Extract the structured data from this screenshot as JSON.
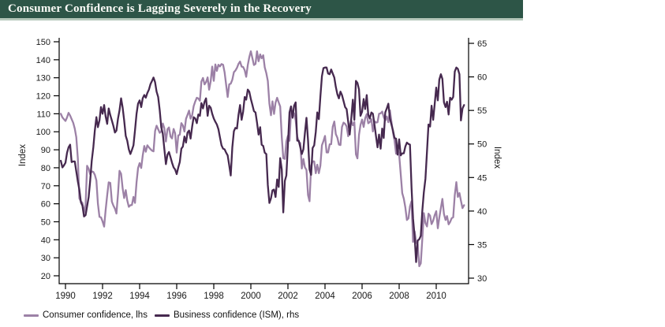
{
  "title": {
    "text": "Consumer Confidence is Lagging Severely in the Recovery"
  },
  "colors": {
    "title_bar_bg": "#2d5547",
    "title_bar_underline": "#b5c7ba",
    "title_text": "#fdfdf8",
    "axis": "#000000",
    "consumer_line": "#9c81a6",
    "ism_line": "#46294f"
  },
  "legend": {
    "items": [
      {
        "label": "Consumer confidence, lhs",
        "color": "#9c81a6"
      },
      {
        "label": "Business confidence (ISM), rhs",
        "color": "#46294f"
      }
    ]
  },
  "chart_data": {
    "type": "line",
    "title": "Consumer Confidence is Lagging Severely in the Recovery",
    "x_start": 1989.75,
    "x_step": "monthly",
    "x_end": 2011.5,
    "x_ticks": [
      1990,
      1992,
      1994,
      1996,
      1998,
      2000,
      2002,
      2004,
      2006,
      2008,
      2010
    ],
    "left_axis": {
      "label": "Index",
      "range": [
        20,
        150
      ],
      "ticks": [
        20,
        30,
        40,
        50,
        60,
        70,
        80,
        90,
        100,
        110,
        120,
        130,
        140,
        150
      ]
    },
    "right_axis": {
      "label": "Index",
      "range": [
        30,
        65
      ],
      "ticks": [
        30,
        35,
        40,
        45,
        50,
        55,
        60,
        65
      ]
    },
    "grid": false,
    "legend_position": "bottom-left",
    "series": [
      {
        "name": "Consumer confidence, lhs",
        "axis": "left",
        "color": "#9c81a6",
        "values": [
          110,
          108,
          107,
          106,
          108,
          110.5,
          109,
          107,
          105,
          101.7,
          97,
          85,
          63,
          61.3,
          60.5,
          55.1,
          59.4,
          81.1,
          79.4,
          76.4,
          78,
          77.7,
          76.1,
          72.9,
          60.1,
          52.7,
          52.5,
          50.2,
          47.3,
          56.5,
          64.8,
          71.9,
          71.6,
          61.2,
          59,
          57.3,
          54.6,
          65.6,
          78.3,
          76.7,
          68.5,
          63.2,
          67.6,
          61.9,
          58.3,
          59.2,
          59.3,
          63.8,
          60.5,
          71.9,
          79.8,
          82.6,
          79.9,
          86.7,
          92.1,
          88.9,
          92.5,
          91.3,
          90.4,
          89.5,
          89.1,
          100.4,
          103.4,
          101.4,
          99.4,
          100.2,
          104.6,
          102,
          94.6,
          101.4,
          102.4,
          97.3,
          96.3,
          101.6,
          99.2,
          88.4,
          98,
          98.4,
          104.8,
          103.5,
          100.1,
          107.2,
          109.4,
          111.8,
          107.3,
          109.2,
          114.2,
          116.8,
          118.9,
          118.5,
          117.2,
          127.9,
          129.9,
          126.3,
          127.6,
          130.2,
          123.4,
          128.1,
          136.2,
          128.3,
          137.4,
          133.8,
          137.2,
          136.3,
          137.6,
          137.2,
          133.1,
          126,
          119.3,
          126.4,
          126.7,
          128.9,
          133.1,
          134,
          135.5,
          137.7,
          139,
          136.2,
          136,
          134.2,
          130.5,
          137,
          141.4,
          144.7,
          140.8,
          137.1,
          137.7,
          144.7,
          139.2,
          143,
          140.8,
          142.5,
          135.8,
          132.6,
          128.3,
          115.7,
          109.2,
          116.9,
          109.9,
          116.1,
          118.9,
          116.3,
          114,
          97,
          85.3,
          84.9,
          94.6,
          97.8,
          95,
          110.7,
          108.5,
          110.3,
          106.3,
          97.4,
          94.5,
          93.7,
          79.6,
          84.9,
          80.3,
          78.8,
          64.8,
          61.4,
          81,
          83.6,
          83.5,
          77,
          81.7,
          77,
          81.1,
          92.5,
          94.8,
          97.7,
          88.5,
          88.5,
          93,
          93.1,
          102.8,
          105.7,
          98.7,
          96.7,
          92.9,
          92.6,
          102.7,
          105.1,
          104.4,
          103,
          97.5,
          103.1,
          106.2,
          103.6,
          105.5,
          87.5,
          85.2,
          98.3,
          103.8,
          106.8,
          102.7,
          107.5,
          109.8,
          104.7,
          105.4,
          107,
          100.2,
          105.9,
          105.1,
          105.3,
          110,
          110.2,
          111.2,
          108.2,
          106.3,
          108.5,
          105.3,
          111.9,
          105.6,
          99.5,
          95.2,
          87.8,
          90.6,
          87.3,
          76.4,
          65.9,
          62.8,
          58.1,
          51,
          51.9,
          58.5,
          61.4,
          38.8,
          44.7,
          38.6,
          37.4,
          25.3,
          26.9,
          40.8,
          54.8,
          49.3,
          47.4,
          54.5,
          53.4,
          48.7,
          50.6,
          53.6,
          55.9,
          46.4,
          52.3,
          57.7,
          62.7,
          54.3,
          51,
          53.2,
          48.6,
          49.9,
          52,
          52.5,
          64.8,
          72,
          63.8,
          66,
          61.7,
          57.6,
          59.2
        ]
      },
      {
        "name": "Business confidence (ISM), rhs",
        "axis": "right",
        "color": "#46294f",
        "values": [
          47.5,
          46.5,
          46.8,
          47.2,
          48.7,
          49.5,
          49.9,
          47.3,
          47.4,
          47.4,
          45.9,
          44.4,
          43.2,
          41.3,
          40.8,
          39.2,
          39.4,
          40.7,
          42.1,
          44.5,
          47.5,
          49.5,
          52,
          54,
          52.5,
          53.5,
          55.5,
          54.5,
          55.8,
          54.1,
          53,
          55.3,
          54.3,
          53.5,
          52.7,
          51.7,
          52,
          53.8,
          55,
          56.8,
          55.4,
          53.5,
          51.2,
          50.5,
          49.2,
          48.5,
          49.1,
          49.8,
          52,
          54.5,
          56,
          56.5,
          55.5,
          56.8,
          57.3,
          56.9,
          57.6,
          58.1,
          58.9,
          59.4,
          59.9,
          59.2,
          57.8,
          57,
          55,
          52.5,
          51.5,
          49.3,
          47,
          48.4,
          48.8,
          48,
          47.2,
          46.5,
          46.2,
          45.5,
          46.5,
          47.3,
          49.3,
          49.6,
          51.1,
          50.2,
          51.7,
          52,
          50.8,
          52.6,
          54,
          53.8,
          53.1,
          54.4,
          54.2,
          56.1,
          55.3,
          56.3,
          56.8,
          54.2,
          55.7,
          55.4,
          54.5,
          53.8,
          53.3,
          52.9,
          52.2,
          51,
          49.8,
          49.3,
          49.2,
          48.7,
          48.3,
          46.8,
          45.3,
          49.5,
          51.9,
          52.4,
          52.3,
          54.3,
          55.8,
          53.6,
          54.8,
          57,
          56.6,
          58.1,
          57.8,
          56.7,
          55.8,
          54.9,
          54.7,
          53.2,
          51.4,
          52.5,
          49.9,
          49.7,
          48.7,
          48.5,
          43.9,
          41.2,
          41.9,
          43.1,
          43.2,
          42.1,
          44.7,
          43.6,
          47.9,
          46.2,
          39.8,
          44.5,
          45.3,
          49.9,
          54.7,
          55.6,
          53.9,
          55.7,
          56.2,
          50.5,
          50.5,
          49.5,
          48.5,
          49.2,
          51.6,
          53.9,
          50.5,
          46.2,
          45.4,
          49.4,
          49.8,
          51.8,
          54.7,
          53.7,
          57,
          60.1,
          61.3,
          61.4,
          61.4,
          60.5,
          60.4,
          61.1,
          60.5,
          59.9,
          58.5,
          57.4,
          56.8,
          57.8,
          57.3,
          56.4,
          55.5,
          55.2,
          53.3,
          51.4,
          53.8,
          56.6,
          53.6,
          59.4,
          59.1,
          58.1,
          54.2,
          54.8,
          56.7,
          55.2,
          57.3,
          54.4,
          53.8,
          54.7,
          54.5,
          52.9,
          51.2,
          49.5,
          51.4,
          49.3,
          52.3,
          50.9,
          54.7,
          55.3,
          56,
          53.8,
          52.9,
          52,
          50.9,
          50.8,
          48.4,
          50.7,
          48.3,
          48.6,
          48.6,
          49.6,
          50.2,
          50,
          49.9,
          43.5,
          38.9,
          36.2,
          32.4,
          35.6,
          35.8,
          36.3,
          40.1,
          42.8,
          44.8,
          48.9,
          52.9,
          52.6,
          55.7,
          53.6,
          55.9,
          58.4,
          56.5,
          59.6,
          60.4,
          59.7,
          56.2,
          55.5,
          56.3,
          54.4,
          56.9,
          56.6,
          57,
          60.8,
          61.4,
          61.2,
          60.4,
          53.5,
          55.3,
          55.8
        ]
      }
    ]
  }
}
